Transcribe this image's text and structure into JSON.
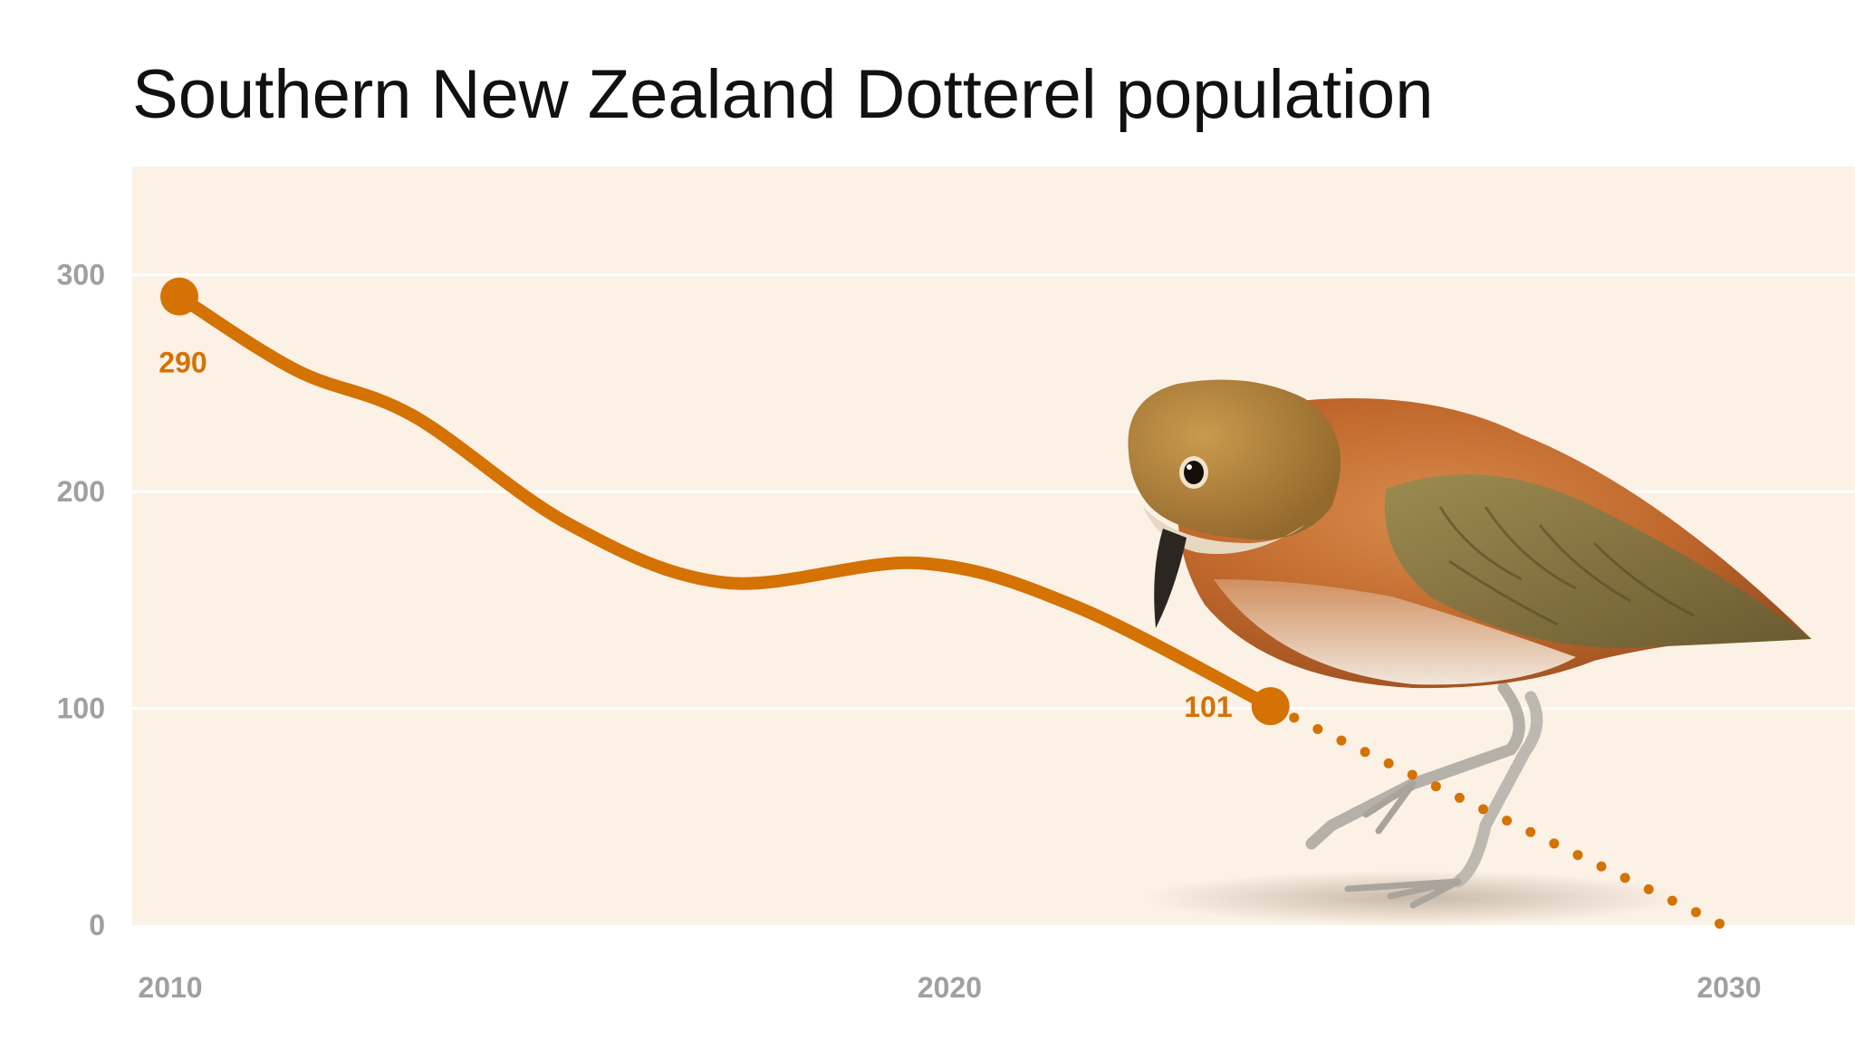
{
  "chart_data": {
    "type": "line",
    "title": "Southern New Zealand Dotterel population",
    "xlabel": "",
    "ylabel": "",
    "x_ticks": [
      2010,
      2020,
      2030
    ],
    "y_ticks": [
      0,
      100,
      200,
      300
    ],
    "xlim": [
      2010,
      2031.5
    ],
    "ylim": [
      0,
      350
    ],
    "grid": true,
    "series": [
      {
        "x": [
          2010,
          2011.5,
          2013,
          2015,
          2017,
          2019.5,
          2021.5,
          2024
        ],
        "values": [
          290,
          256,
          235,
          185,
          158,
          167,
          147,
          101
        ]
      }
    ],
    "projection": {
      "x": [
        2024,
        2029.8
      ],
      "values": [
        101,
        0
      ]
    },
    "annotations": [
      {
        "x": 2010,
        "y": 290,
        "text": "290"
      },
      {
        "x": 2024,
        "y": 101,
        "text": "101"
      }
    ],
    "colors": {
      "line": "#d47204",
      "background": "#fbf1e5",
      "grid": "#ffffff",
      "tick": "#a0a0a0"
    },
    "illustration": "new-zealand-dotterel-bird-icon"
  }
}
